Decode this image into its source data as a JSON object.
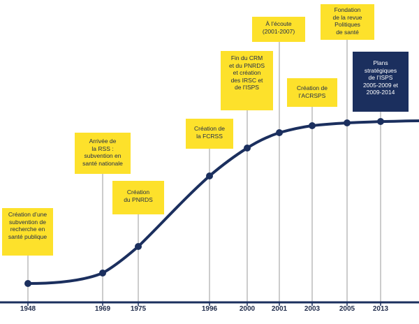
{
  "colors": {
    "curve": "#1b2f5e",
    "box": "#fde12b",
    "box_highlight": "#1b2f5e",
    "stem": "#9a9a9a"
  },
  "milestones": [
    {
      "year": "1948",
      "label": "Création d’une\nsubvention de\nrecherche en\nsanté publique"
    },
    {
      "year": "1969",
      "label": "Arrivée de\nla RSS :\nsubvention en\nsanté nationale"
    },
    {
      "year": "1975",
      "label": "Création\ndu PNRDS"
    },
    {
      "year": "1996",
      "label": "Création de\nla FCRSS"
    },
    {
      "year": "2000",
      "label": "Fin du CRM\net du PNRDS\net création\ndes IRSC et\nde l’ISPS"
    },
    {
      "year": "2001",
      "label": "À l’écoute\n(2001-2007)"
    },
    {
      "year": "2003",
      "label": "Création de\nl’ACRSPS"
    },
    {
      "year": "2005",
      "label": "Fondation\nde la revue\nPolitiques\nde santé"
    },
    {
      "year": "2013",
      "label": "Plans\nstratégiques\nde l’ISPS\n2005-2009 et\n2009-2014"
    }
  ]
}
